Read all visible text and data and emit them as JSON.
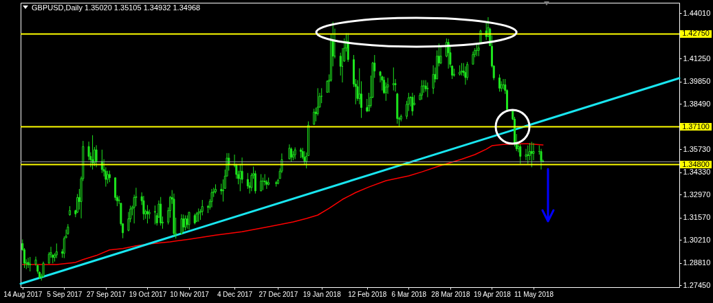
{
  "chart_data": {
    "type": "candlestick",
    "title": "GBPUSD,Daily 1.35020 1.35105 1.34932 1.34968",
    "color": "#1ee61e",
    "x": [
      "2017-08-14",
      "2017-08-15",
      "2017-08-16",
      "2017-08-17",
      "2017-08-18",
      "2017-08-21",
      "2017-08-22",
      "2017-08-23",
      "2017-08-24",
      "2017-08-25",
      "2017-08-28",
      "2017-08-29",
      "2017-08-30",
      "2017-08-31",
      "2017-09-01",
      "2017-09-04",
      "2017-09-05",
      "2017-09-06",
      "2017-09-07",
      "2017-09-08",
      "2017-09-11",
      "2017-09-12",
      "2017-09-13",
      "2017-09-14",
      "2017-09-15",
      "2017-09-18",
      "2017-09-19",
      "2017-09-20",
      "2017-09-21",
      "2017-09-22",
      "2017-09-25",
      "2017-09-26",
      "2017-09-27",
      "2017-09-28",
      "2017-09-29",
      "2017-10-02",
      "2017-10-03",
      "2017-10-04",
      "2017-10-05",
      "2017-10-06",
      "2017-10-09",
      "2017-10-10",
      "2017-10-11",
      "2017-10-12",
      "2017-10-13",
      "2017-10-16",
      "2017-10-17",
      "2017-10-18",
      "2017-10-19",
      "2017-10-20",
      "2017-10-23",
      "2017-10-24",
      "2017-10-25",
      "2017-10-26",
      "2017-10-27",
      "2017-10-30",
      "2017-10-31",
      "2017-11-01",
      "2017-11-02",
      "2017-11-03",
      "2017-11-06",
      "2017-11-07",
      "2017-11-08",
      "2017-11-09",
      "2017-11-10",
      "2017-11-13",
      "2017-11-14",
      "2017-11-15",
      "2017-11-16",
      "2017-11-17",
      "2017-11-20",
      "2017-11-21",
      "2017-11-22",
      "2017-11-23",
      "2017-11-24",
      "2017-11-27",
      "2017-11-28",
      "2017-11-29",
      "2017-11-30",
      "2017-12-01",
      "2017-12-04",
      "2017-12-05",
      "2017-12-06",
      "2017-12-07",
      "2017-12-08",
      "2017-12-11",
      "2017-12-12",
      "2017-12-13",
      "2017-12-14",
      "2017-12-15",
      "2017-12-18",
      "2017-12-19",
      "2017-12-20",
      "2017-12-21",
      "2017-12-22",
      "2017-12-26",
      "2017-12-27",
      "2017-12-28",
      "2017-12-29",
      "2018-01-02",
      "2018-01-03",
      "2018-01-04",
      "2018-01-05",
      "2018-01-08",
      "2018-01-09",
      "2018-01-10",
      "2018-01-11",
      "2018-01-12",
      "2018-01-15",
      "2018-01-16",
      "2018-01-17",
      "2018-01-18",
      "2018-01-19",
      "2018-01-22",
      "2018-01-23",
      "2018-01-24",
      "2018-01-25",
      "2018-01-26",
      "2018-01-29",
      "2018-01-30",
      "2018-01-31",
      "2018-02-01",
      "2018-02-02",
      "2018-02-05",
      "2018-02-06",
      "2018-02-07",
      "2018-02-08",
      "2018-02-09",
      "2018-02-12",
      "2018-02-13",
      "2018-02-14",
      "2018-02-15",
      "2018-02-16",
      "2018-02-19",
      "2018-02-20",
      "2018-02-21",
      "2018-02-22",
      "2018-02-23",
      "2018-02-26",
      "2018-02-27",
      "2018-02-28",
      "2018-03-01",
      "2018-03-02",
      "2018-03-05",
      "2018-03-06",
      "2018-03-07",
      "2018-03-08",
      "2018-03-09",
      "2018-03-12",
      "2018-03-13",
      "2018-03-14",
      "2018-03-15",
      "2018-03-16",
      "2018-03-19",
      "2018-03-20",
      "2018-03-21",
      "2018-03-22",
      "2018-03-23",
      "2018-03-26",
      "2018-03-27",
      "2018-03-28",
      "2018-03-29",
      "2018-03-30",
      "2018-04-02",
      "2018-04-03",
      "2018-04-04",
      "2018-04-05",
      "2018-04-06",
      "2018-04-09",
      "2018-04-10",
      "2018-04-11",
      "2018-04-12",
      "2018-04-13",
      "2018-04-16",
      "2018-04-17",
      "2018-04-18",
      "2018-04-19",
      "2018-04-20",
      "2018-04-23",
      "2018-04-24",
      "2018-04-25",
      "2018-04-26",
      "2018-04-27",
      "2018-04-30",
      "2018-05-01",
      "2018-05-02",
      "2018-05-03",
      "2018-05-04",
      "2018-05-07",
      "2018-05-08",
      "2018-05-09",
      "2018-05-10",
      "2018-05-11",
      "2018-05-14",
      "2018-05-15",
      "2018-05-16"
    ],
    "ohlc": [
      [
        1.3,
        1.3025,
        1.2955,
        1.2962
      ],
      [
        1.2962,
        1.2972,
        1.2851,
        1.288
      ],
      [
        1.2878,
        1.2904,
        1.2844,
        1.2885
      ],
      [
        1.2885,
        1.2913,
        1.2851,
        1.287
      ],
      [
        1.287,
        1.2918,
        1.283,
        1.2875
      ],
      [
        1.2875,
        1.292,
        1.2865,
        1.29
      ],
      [
        1.2866,
        1.2872,
        1.2816,
        1.283
      ],
      [
        1.2825,
        1.283,
        1.2784,
        1.2795
      ],
      [
        1.2795,
        1.2816,
        1.2774,
        1.28
      ],
      [
        1.28,
        1.289,
        1.2795,
        1.288
      ],
      [
        1.288,
        1.2948,
        1.2879,
        1.2935
      ],
      [
        1.2935,
        1.298,
        1.2913,
        1.2945
      ],
      [
        1.293,
        1.2934,
        1.2879,
        1.2915
      ],
      [
        1.2915,
        1.2941,
        1.289,
        1.293
      ],
      [
        1.293,
        1.3,
        1.2911,
        1.295
      ],
      [
        1.295,
        1.2966,
        1.2913,
        1.294
      ],
      [
        1.294,
        1.3043,
        1.2911,
        1.303
      ],
      [
        1.3035,
        1.3085,
        1.3032,
        1.3045
      ],
      [
        1.306,
        1.3118,
        1.3053,
        1.31
      ],
      [
        1.3175,
        1.3227,
        1.3169,
        1.32
      ],
      [
        1.32,
        1.3206,
        1.316,
        1.318
      ],
      [
        1.319,
        1.3301,
        1.3185,
        1.328
      ],
      [
        1.328,
        1.3332,
        1.3206,
        1.3255
      ],
      [
        1.3255,
        1.3408,
        1.3153,
        1.3395
      ],
      [
        1.3395,
        1.3624,
        1.338,
        1.359
      ],
      [
        1.359,
        1.362,
        1.3506,
        1.353
      ],
      [
        1.353,
        1.3555,
        1.3464,
        1.351
      ],
      [
        1.351,
        1.3659,
        1.345,
        1.349
      ],
      [
        1.349,
        1.3587,
        1.3471,
        1.357
      ],
      [
        1.357,
        1.3598,
        1.3464,
        1.35
      ],
      [
        1.35,
        1.3571,
        1.3429,
        1.345
      ],
      [
        1.345,
        1.3513,
        1.3408,
        1.344
      ],
      [
        1.344,
        1.3464,
        1.3346,
        1.339
      ],
      [
        1.339,
        1.3443,
        1.3364,
        1.342
      ],
      [
        1.342,
        1.3443,
        1.3373,
        1.34
      ],
      [
        1.34,
        1.3401,
        1.3262,
        1.328
      ],
      [
        1.328,
        1.3293,
        1.3227,
        1.326
      ],
      [
        1.326,
        1.329,
        1.3241,
        1.3265
      ],
      [
        1.3245,
        1.3248,
        1.3108,
        1.312
      ],
      [
        1.312,
        1.3122,
        1.3032,
        1.3065
      ],
      [
        1.308,
        1.3192,
        1.3074,
        1.315
      ],
      [
        1.315,
        1.323,
        1.3129,
        1.321
      ],
      [
        1.321,
        1.323,
        1.3171,
        1.322
      ],
      [
        1.322,
        1.3297,
        1.3122,
        1.328
      ],
      [
        1.328,
        1.3339,
        1.3227,
        1.3285
      ],
      [
        1.3285,
        1.3311,
        1.3234,
        1.326
      ],
      [
        1.326,
        1.329,
        1.3143,
        1.318
      ],
      [
        1.318,
        1.3206,
        1.315,
        1.3195
      ],
      [
        1.3195,
        1.3234,
        1.3122,
        1.318
      ],
      [
        1.318,
        1.3206,
        1.315,
        1.319
      ],
      [
        1.319,
        1.3231,
        1.3116,
        1.3195
      ],
      [
        1.317,
        1.3185,
        1.3109,
        1.3125
      ],
      [
        1.316,
        1.3262,
        1.3157,
        1.324
      ],
      [
        1.324,
        1.3283,
        1.3109,
        1.3125
      ],
      [
        1.3125,
        1.3164,
        1.309,
        1.313
      ],
      [
        1.313,
        1.322,
        1.3116,
        1.32
      ],
      [
        1.32,
        1.329,
        1.3157,
        1.328
      ],
      [
        1.328,
        1.3325,
        1.3241,
        1.327
      ],
      [
        1.327,
        1.3304,
        1.3045,
        1.306
      ],
      [
        1.306,
        1.3157,
        1.303,
        1.306
      ],
      [
        1.306,
        1.3178,
        1.3055,
        1.315
      ],
      [
        1.315,
        1.3176,
        1.307,
        1.31
      ],
      [
        1.31,
        1.3171,
        1.308,
        1.315
      ],
      [
        1.315,
        1.3171,
        1.309,
        1.3115
      ],
      [
        1.3115,
        1.3192,
        1.3085,
        1.319
      ],
      [
        1.317,
        1.3182,
        1.3116,
        1.3125
      ],
      [
        1.3135,
        1.3192,
        1.313,
        1.318
      ],
      [
        1.318,
        1.3213,
        1.3132,
        1.319
      ],
      [
        1.319,
        1.3209,
        1.3143,
        1.3195
      ],
      [
        1.3195,
        1.3265,
        1.3171,
        1.3225
      ],
      [
        1.3225,
        1.3234,
        1.3185,
        1.322
      ],
      [
        1.322,
        1.3269,
        1.3206,
        1.3255
      ],
      [
        1.3255,
        1.3332,
        1.322,
        1.331
      ],
      [
        1.331,
        1.3339,
        1.3283,
        1.3315
      ],
      [
        1.3315,
        1.336,
        1.3304,
        1.333
      ],
      [
        1.333,
        1.3364,
        1.3297,
        1.332
      ],
      [
        1.332,
        1.339,
        1.3255,
        1.3325
      ],
      [
        1.3335,
        1.345,
        1.3332,
        1.341
      ],
      [
        1.341,
        1.355,
        1.3408,
        1.352
      ],
      [
        1.352,
        1.355,
        1.3443,
        1.348
      ],
      [
        1.348,
        1.3541,
        1.3464,
        1.3475
      ],
      [
        1.3475,
        1.3485,
        1.3394,
        1.342
      ],
      [
        1.342,
        1.3443,
        1.336,
        1.3395
      ],
      [
        1.3395,
        1.3485,
        1.3318,
        1.344
      ],
      [
        1.344,
        1.3523,
        1.3366,
        1.339
      ],
      [
        1.339,
        1.3429,
        1.3332,
        1.335
      ],
      [
        1.335,
        1.3373,
        1.3304,
        1.334
      ],
      [
        1.334,
        1.3429,
        1.3318,
        1.3415
      ],
      [
        1.3415,
        1.3468,
        1.3394,
        1.3425
      ],
      [
        1.3425,
        1.3443,
        1.3304,
        1.332
      ],
      [
        1.332,
        1.3422,
        1.3318,
        1.338
      ],
      [
        1.338,
        1.3401,
        1.3325,
        1.338
      ],
      [
        1.338,
        1.3422,
        1.3353,
        1.3375
      ],
      [
        1.3375,
        1.3387,
        1.3332,
        1.336
      ],
      [
        1.336,
        1.3401,
        1.3353,
        1.337
      ],
      [
        1.337,
        1.338,
        1.3346,
        1.3365
      ],
      [
        1.3365,
        1.3394,
        1.336,
        1.3385
      ],
      [
        1.3395,
        1.3457,
        1.3394,
        1.344
      ],
      [
        1.344,
        1.3548,
        1.3429,
        1.351
      ],
      [
        1.3515,
        1.3603,
        1.3513,
        1.358
      ],
      [
        1.3575,
        1.3585,
        1.3499,
        1.3525
      ],
      [
        1.3525,
        1.3562,
        1.3506,
        1.354
      ],
      [
        1.354,
        1.3585,
        1.3513,
        1.357
      ],
      [
        1.357,
        1.3582,
        1.352,
        1.356
      ],
      [
        1.356,
        1.3582,
        1.3513,
        1.3525
      ],
      [
        1.3525,
        1.3562,
        1.3478,
        1.35
      ],
      [
        1.35,
        1.3554,
        1.3457,
        1.353
      ],
      [
        1.3534,
        1.3743,
        1.3534,
        1.372
      ],
      [
        1.3725,
        1.382,
        1.3722,
        1.38
      ],
      [
        1.38,
        1.3827,
        1.3743,
        1.379
      ],
      [
        1.379,
        1.3945,
        1.3778,
        1.383
      ],
      [
        1.383,
        1.3917,
        1.3827,
        1.3896
      ],
      [
        1.3896,
        1.3945,
        1.3854,
        1.3896
      ],
      [
        1.392,
        1.3994,
        1.3917,
        1.3987
      ],
      [
        1.3987,
        1.4029,
        1.3917,
        1.3994
      ],
      [
        1.3994,
        1.4275,
        1.3985,
        1.4238
      ],
      [
        1.4238,
        1.4349,
        1.4078,
        1.414
      ],
      [
        1.414,
        1.4308,
        1.4126,
        1.414
      ],
      [
        1.414,
        1.4161,
        1.4022,
        1.4078
      ],
      [
        1.4078,
        1.4189,
        1.398,
        1.4078
      ],
      [
        1.411,
        1.4248,
        1.4105,
        1.4189
      ],
      [
        1.4189,
        1.428,
        1.4168,
        1.4231
      ],
      [
        1.4231,
        1.428,
        1.4105,
        1.4119
      ],
      [
        1.4119,
        1.4147,
        1.3952,
        1.397
      ],
      [
        1.397,
        1.4001,
        1.3847,
        1.3955
      ],
      [
        1.3955,
        1.3994,
        1.3868,
        1.3882
      ],
      [
        1.3882,
        1.4066,
        1.3847,
        1.391
      ],
      [
        1.391,
        1.3987,
        1.3764,
        1.3827
      ],
      [
        1.3827,
        1.388,
        1.3799,
        1.3806
      ],
      [
        1.3806,
        1.3917,
        1.3806,
        1.384
      ],
      [
        1.384,
        1.4022,
        1.3827,
        1.389
      ],
      [
        1.389,
        1.4105,
        1.3885,
        1.4098
      ],
      [
        1.4098,
        1.4147,
        1.4008,
        1.405
      ],
      [
        1.4045,
        1.405,
        1.398,
        1.4022
      ],
      [
        1.4015,
        1.4022,
        1.3931,
        1.3994
      ],
      [
        1.3994,
        1.4015,
        1.391,
        1.3917
      ],
      [
        1.3917,
        1.398,
        1.3868,
        1.3952
      ],
      [
        1.3952,
        1.4008,
        1.391,
        1.3966
      ],
      [
        1.3966,
        1.4071,
        1.3931,
        1.3973
      ],
      [
        1.3973,
        1.4001,
        1.3924,
        1.3966
      ],
      [
        1.391,
        1.3917,
        1.3729,
        1.376
      ],
      [
        1.376,
        1.3771,
        1.3712,
        1.3757
      ],
      [
        1.3757,
        1.3785,
        1.3743,
        1.3774
      ],
      [
        1.3774,
        1.3868,
        1.3757,
        1.3847
      ],
      [
        1.3847,
        1.3917,
        1.3806,
        1.3887
      ],
      [
        1.3887,
        1.3896,
        1.3834,
        1.389
      ],
      [
        1.389,
        1.3917,
        1.3778,
        1.3806
      ],
      [
        1.3845,
        1.3903,
        1.384,
        1.3854
      ],
      [
        1.3875,
        1.3917,
        1.3875,
        1.3903
      ],
      [
        1.3903,
        1.3994,
        1.3875,
        1.3959
      ],
      [
        1.3959,
        1.3994,
        1.3917,
        1.3959
      ],
      [
        1.3959,
        1.3994,
        1.3924,
        1.3941
      ],
      [
        1.3941,
        1.398,
        1.389,
        1.3945
      ],
      [
        1.3945,
        1.4084,
        1.391,
        1.4029
      ],
      [
        1.4029,
        1.4071,
        1.398,
        1.4001
      ],
      [
        1.4001,
        1.4175,
        1.4001,
        1.414
      ],
      [
        1.414,
        1.4217,
        1.4078,
        1.4098
      ],
      [
        1.4098,
        1.4196,
        1.4091,
        1.414
      ],
      [
        1.414,
        1.4248,
        1.4133,
        1.4224
      ],
      [
        1.4224,
        1.4245,
        1.4064,
        1.4161
      ],
      [
        1.4161,
        1.4203,
        1.4071,
        1.409
      ],
      [
        1.408,
        1.4084,
        1.4001,
        1.4024
      ],
      [
        1.4024,
        1.4064,
        1.4015,
        1.403
      ],
      [
        1.403,
        1.4084,
        1.4022,
        1.4043
      ],
      [
        1.4043,
        1.4098,
        1.4022,
        1.405
      ],
      [
        1.405,
        1.4098,
        1.4019,
        1.404
      ],
      [
        1.404,
        1.4078,
        1.3966,
        1.401
      ],
      [
        1.401,
        1.4105,
        1.3994,
        1.409
      ],
      [
        1.4091,
        1.4168,
        1.4091,
        1.415
      ],
      [
        1.415,
        1.4189,
        1.4133,
        1.4175
      ],
      [
        1.4175,
        1.4217,
        1.414,
        1.4175
      ],
      [
        1.4175,
        1.4217,
        1.414,
        1.419
      ],
      [
        1.422,
        1.4301,
        1.4217,
        1.4294
      ],
      [
        1.4294,
        1.4342,
        1.4238,
        1.4259
      ],
      [
        1.4259,
        1.4377,
        1.4259,
        1.4314
      ],
      [
        1.4305,
        1.4314,
        1.4203,
        1.4203
      ],
      [
        1.42,
        1.4266,
        1.4071,
        1.408
      ],
      [
        1.408,
        1.4084,
        1.3994,
        1.4008
      ],
      [
        1.4008,
        1.4029,
        1.3924,
        1.3945
      ],
      [
        1.3945,
        1.3987,
        1.3924,
        1.3966
      ],
      [
        1.3966,
        1.4001,
        1.3938,
        1.3966
      ],
      [
        1.3966,
        1.4001,
        1.391,
        1.3931
      ],
      [
        1.3931,
        1.3938,
        1.3813,
        1.3815
      ],
      [
        1.381,
        1.3813,
        1.375,
        1.3757
      ],
      [
        1.3757,
        1.3771,
        1.359,
        1.361
      ],
      [
        1.361,
        1.3666,
        1.3562,
        1.3576
      ],
      [
        1.3576,
        1.3618,
        1.3555,
        1.359
      ],
      [
        1.359,
        1.3604,
        1.3485,
        1.353
      ],
      [
        1.353,
        1.3576,
        1.3506,
        1.354
      ],
      [
        1.354,
        1.3597,
        1.3485,
        1.3535
      ],
      [
        1.3535,
        1.3611,
        1.3506,
        1.356
      ],
      [
        1.356,
        1.3618,
        1.3464,
        1.3548
      ],
      [
        1.3548,
        1.3611,
        1.3506,
        1.356
      ],
      [
        1.356,
        1.3597,
        1.3541,
        1.356
      ],
      [
        1.356,
        1.3576,
        1.345,
        1.3502
      ],
      [
        1.3502,
        1.35105,
        1.34932,
        1.34968
      ]
    ],
    "series": [
      {
        "type": "line",
        "color": "#ff0000",
        "x": [
          "2017-08-14",
          "2017-09-01",
          "2017-09-06",
          "2017-09-11",
          "2017-09-15",
          "2017-09-22",
          "2017-09-29",
          "2017-10-06",
          "2017-10-13",
          "2017-10-20",
          "2017-10-31",
          "2017-11-10",
          "2017-11-24",
          "2017-12-08",
          "2017-12-22",
          "2018-01-04",
          "2018-01-11",
          "2018-01-17",
          "2018-01-23",
          "2018-01-30",
          "2018-02-06",
          "2018-02-13",
          "2018-02-22",
          "2018-03-06",
          "2018-03-13",
          "2018-03-22",
          "2018-04-03",
          "2018-04-10",
          "2018-04-16",
          "2018-04-19",
          "2018-04-25",
          "2018-05-02",
          "2018-05-08",
          "2018-05-16"
        ],
        "values": [
          1.2872,
          1.2872,
          1.2878,
          1.2885,
          1.2902,
          1.2927,
          1.2961,
          1.2969,
          1.2986,
          1.2997,
          1.301,
          1.3026,
          1.3051,
          1.3072,
          1.3102,
          1.3131,
          1.3152,
          1.3173,
          1.3214,
          1.3268,
          1.331,
          1.3344,
          1.3382,
          1.3411,
          1.3436,
          1.3471,
          1.3513,
          1.3541,
          1.3574,
          1.3595,
          1.3603,
          1.3606,
          1.3607,
          1.36
        ]
      },
      {
        "type": "line",
        "color": "#19e6f0",
        "x": [
          "2017-08-13",
          "2018-07-27"
        ],
        "values": [
          1.2755,
          1.4006
        ]
      }
    ],
    "xlim": [
      "2017-08-13",
      "2018-07-27"
    ],
    "xticks": [
      {
        "value": "2017-08-14",
        "label": "14 Aug 2017"
      },
      {
        "value": "2017-09-05",
        "label": "5 Sep 2017"
      },
      {
        "value": "2017-09-27",
        "label": "27 Sep 2017"
      },
      {
        "value": "2017-10-19",
        "label": "19 Oct 2017"
      },
      {
        "value": "2017-11-10",
        "label": "10 Nov 2017"
      },
      {
        "value": "2017-12-04",
        "label": "4 Dec 2017"
      },
      {
        "value": "2017-12-27",
        "label": "27 Dec 2017"
      },
      {
        "value": "2018-01-19",
        "label": "19 Jan 2018"
      },
      {
        "value": "2018-02-12",
        "label": "12 Feb 2018"
      },
      {
        "value": "2018-03-06",
        "label": "6 Mar 2018"
      },
      {
        "value": "2018-03-28",
        "label": "28 Mar 2018"
      },
      {
        "value": "2018-04-19",
        "label": "19 Apr 2018"
      },
      {
        "value": "2018-05-11",
        "label": "11 May 2018"
      }
    ],
    "ylim": [
      1.2734,
      1.4465
    ],
    "yticks": [
      {
        "value": 1.4401,
        "label": "1.44010"
      },
      {
        "value": 1.4125,
        "label": "1.41250"
      },
      {
        "value": 1.3985,
        "label": "1.39850"
      },
      {
        "value": 1.3849,
        "label": "1.38490"
      },
      {
        "value": 1.3573,
        "label": "1.35730"
      },
      {
        "value": 1.3433,
        "label": "1.34330"
      },
      {
        "value": 1.3297,
        "label": "1.32970"
      },
      {
        "value": 1.3157,
        "label": "1.31570"
      },
      {
        "value": 1.3021,
        "label": "1.30210"
      },
      {
        "value": 1.2881,
        "label": "1.28810"
      },
      {
        "value": 1.2745,
        "label": "1.27450"
      }
    ],
    "ref_lines": [
      {
        "axis": "y",
        "value": 1.4275,
        "label": "1.42750",
        "color": "#ffff00"
      },
      {
        "axis": "y",
        "value": 1.371,
        "label": "1.37100",
        "color": "#ffff00"
      },
      {
        "axis": "y",
        "value": 1.34968,
        "color": "#a0a0a0"
      },
      {
        "axis": "y",
        "value": 1.348,
        "label": "1.34800",
        "color": "#ffff00"
      }
    ]
  }
}
